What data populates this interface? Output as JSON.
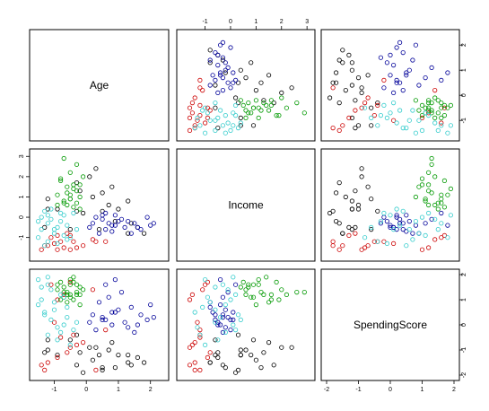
{
  "chart_data": {
    "type": "scatter-matrix",
    "variables": [
      "Age",
      "Income",
      "SpendingScore"
    ],
    "tick_labels": [
      "-2",
      "-1",
      "0",
      "1",
      "2",
      "3"
    ],
    "ranges": {
      "Age": [
        -1.6,
        2.4
      ],
      "Income": [
        -1.9,
        3.1
      ],
      "SpendingScore": [
        -2,
        2
      ]
    },
    "clusters": [
      {
        "color": "#000000",
        "points": [
          [
            1.6,
            -0.5,
            -1.3
          ],
          [
            1.4,
            -0.3,
            -1.6
          ],
          [
            0.4,
            -0.6,
            -1.2
          ],
          [
            1.8,
            -0.8,
            -1.5
          ],
          [
            0.7,
            0.6,
            -1.0
          ],
          [
            -0.2,
            1.3,
            -1.1
          ],
          [
            -0.3,
            1.7,
            -1.6
          ],
          [
            0.1,
            2.0,
            -0.9
          ],
          [
            0.5,
            1.2,
            -1.7
          ],
          [
            1.0,
            0.4,
            -1.2
          ],
          [
            -0.3,
            0.3,
            -0.4
          ],
          [
            -0.5,
            -0.6,
            -0.6
          ],
          [
            -1.2,
            0.4,
            -1.0
          ],
          [
            -1.3,
            -0.5,
            -1.1
          ],
          [
            -1.2,
            0.9,
            -0.6
          ],
          [
            1.3,
            0.8,
            -1.2
          ],
          [
            0.9,
            -0.2,
            -1.7
          ],
          [
            0.8,
            1.5,
            -0.7
          ],
          [
            0.3,
            2.4,
            -0.9
          ],
          [
            -0.1,
            0.2,
            -1.9
          ],
          [
            1.3,
            -0.8,
            -1.5
          ],
          [
            0.2,
            1.0,
            -1.4
          ],
          [
            -0.9,
            0.4,
            -1.2
          ],
          [
            0.5,
            0.3,
            -1.8
          ]
        ]
      },
      {
        "color": "#cc0000",
        "points": [
          [
            -1.4,
            -1.6,
            -1.6
          ],
          [
            -1.3,
            -1.4,
            -1.8
          ],
          [
            -0.9,
            -0.9,
            -1.3
          ],
          [
            -0.5,
            -1.6,
            -0.9
          ],
          [
            -0.8,
            -1.2,
            -0.5
          ],
          [
            -1.0,
            -1.3,
            0.1
          ],
          [
            -0.3,
            -1.5,
            -0.8
          ],
          [
            -1.2,
            -1.4,
            -1.5
          ],
          [
            -0.6,
            -0.8,
            -1.1
          ],
          [
            -0.7,
            -1.5,
            1.2
          ],
          [
            -1.1,
            -1.0,
            1.6
          ],
          [
            0.3,
            -1.2,
            -1.8
          ],
          [
            -0.4,
            -1.2,
            -0.4
          ],
          [
            -0.9,
            -1.6,
            1.0
          ],
          [
            0.2,
            -1.1,
            1.4
          ],
          [
            -0.1,
            -1.4,
            -0.7
          ],
          [
            -0.5,
            -0.9,
            1.7
          ],
          [
            0.6,
            -1.2,
            -0.2
          ]
        ]
      },
      {
        "color": "#000099",
        "points": [
          [
            0.2,
            -0.3,
            0.4
          ],
          [
            0.5,
            -0.1,
            0.3
          ],
          [
            0.8,
            -0.4,
            0.0
          ],
          [
            1.0,
            -0.2,
            0.6
          ],
          [
            0.3,
            0.0,
            -0.2
          ],
          [
            0.6,
            -0.6,
            0.2
          ],
          [
            1.2,
            -0.5,
            0.1
          ],
          [
            0.9,
            0.1,
            0.5
          ],
          [
            1.5,
            -0.3,
            -0.3
          ],
          [
            1.9,
            0.0,
            0.2
          ],
          [
            1.7,
            -0.6,
            0.4
          ],
          [
            2.0,
            -0.4,
            0.8
          ],
          [
            0.4,
            -0.8,
            0.9
          ],
          [
            0.7,
            -0.3,
            1.1
          ],
          [
            1.1,
            -0.1,
            1.3
          ],
          [
            1.4,
            -0.8,
            0.7
          ],
          [
            0.6,
            0.2,
            1.6
          ],
          [
            0.1,
            -0.5,
            0.1
          ],
          [
            1.3,
            -0.2,
            -0.1
          ],
          [
            0.8,
            -0.7,
            0.5
          ],
          [
            0.5,
            0.1,
            0.2
          ],
          [
            1.6,
            -0.5,
            0.0
          ],
          [
            0.9,
            -0.4,
            1.8
          ],
          [
            2.1,
            -0.3,
            0.3
          ]
        ]
      },
      {
        "color": "#009900",
        "points": [
          [
            -0.6,
            1.2,
            1.3
          ],
          [
            -0.5,
            0.9,
            1.6
          ],
          [
            -0.4,
            1.6,
            1.0
          ],
          [
            -0.7,
            0.7,
            1.5
          ],
          [
            -0.3,
            1.3,
            1.2
          ],
          [
            -0.8,
            1.8,
            1.7
          ],
          [
            -0.5,
            2.2,
            1.2
          ],
          [
            -0.2,
            1.0,
            0.8
          ],
          [
            -0.9,
            0.6,
            1.4
          ],
          [
            -0.4,
            0.5,
            1.7
          ],
          [
            -0.6,
            1.5,
            0.9
          ],
          [
            -0.3,
            2.6,
            1.3
          ],
          [
            -0.7,
            0.8,
            1.1
          ],
          [
            -0.2,
            0.4,
            1.5
          ],
          [
            -0.5,
            1.1,
            1.8
          ],
          [
            -0.8,
            1.9,
            1.0
          ],
          [
            -0.1,
            2.0,
            1.4
          ],
          [
            -0.6,
            0.6,
            1.2
          ],
          [
            -0.4,
            1.4,
            1.9
          ],
          [
            -0.3,
            0.7,
            1.6
          ],
          [
            -0.7,
            2.9,
            1.3
          ],
          [
            -0.5,
            0.9,
            1.1
          ],
          [
            -0.9,
            1.1,
            1.6
          ],
          [
            -0.2,
            1.6,
            1.2
          ]
        ]
      },
      {
        "color": "#33cccc",
        "points": [
          [
            -1.4,
            0.0,
            1.0
          ],
          [
            -1.2,
            -0.3,
            1.6
          ],
          [
            -1.0,
            -0.6,
            0.6
          ],
          [
            -0.8,
            0.2,
            1.2
          ],
          [
            -1.5,
            -1.0,
            1.8
          ],
          [
            -1.3,
            0.3,
            0.4
          ],
          [
            -1.1,
            -0.1,
            1.4
          ],
          [
            -0.9,
            -0.5,
            -0.6
          ],
          [
            -0.7,
            0.1,
            0.0
          ],
          [
            -1.2,
            -1.2,
            -0.4
          ],
          [
            -0.6,
            -0.4,
            0.3
          ],
          [
            -0.4,
            0.2,
            -0.2
          ],
          [
            -1.0,
            -0.8,
            0.9
          ],
          [
            -1.4,
            -0.6,
            1.5
          ],
          [
            -0.5,
            -1.0,
            -0.8
          ],
          [
            -1.3,
            -1.4,
            0.5
          ],
          [
            -0.8,
            -0.2,
            -0.3
          ],
          [
            -1.1,
            0.4,
            0.2
          ],
          [
            -0.7,
            -0.9,
            1.1
          ],
          [
            -1.5,
            -0.2,
            0.8
          ],
          [
            -0.3,
            -0.6,
            0.1
          ],
          [
            -0.9,
            -1.3,
            -0.1
          ],
          [
            -1.2,
            0.1,
            1.9
          ],
          [
            -0.6,
            -1.1,
            0.7
          ]
        ]
      }
    ]
  }
}
